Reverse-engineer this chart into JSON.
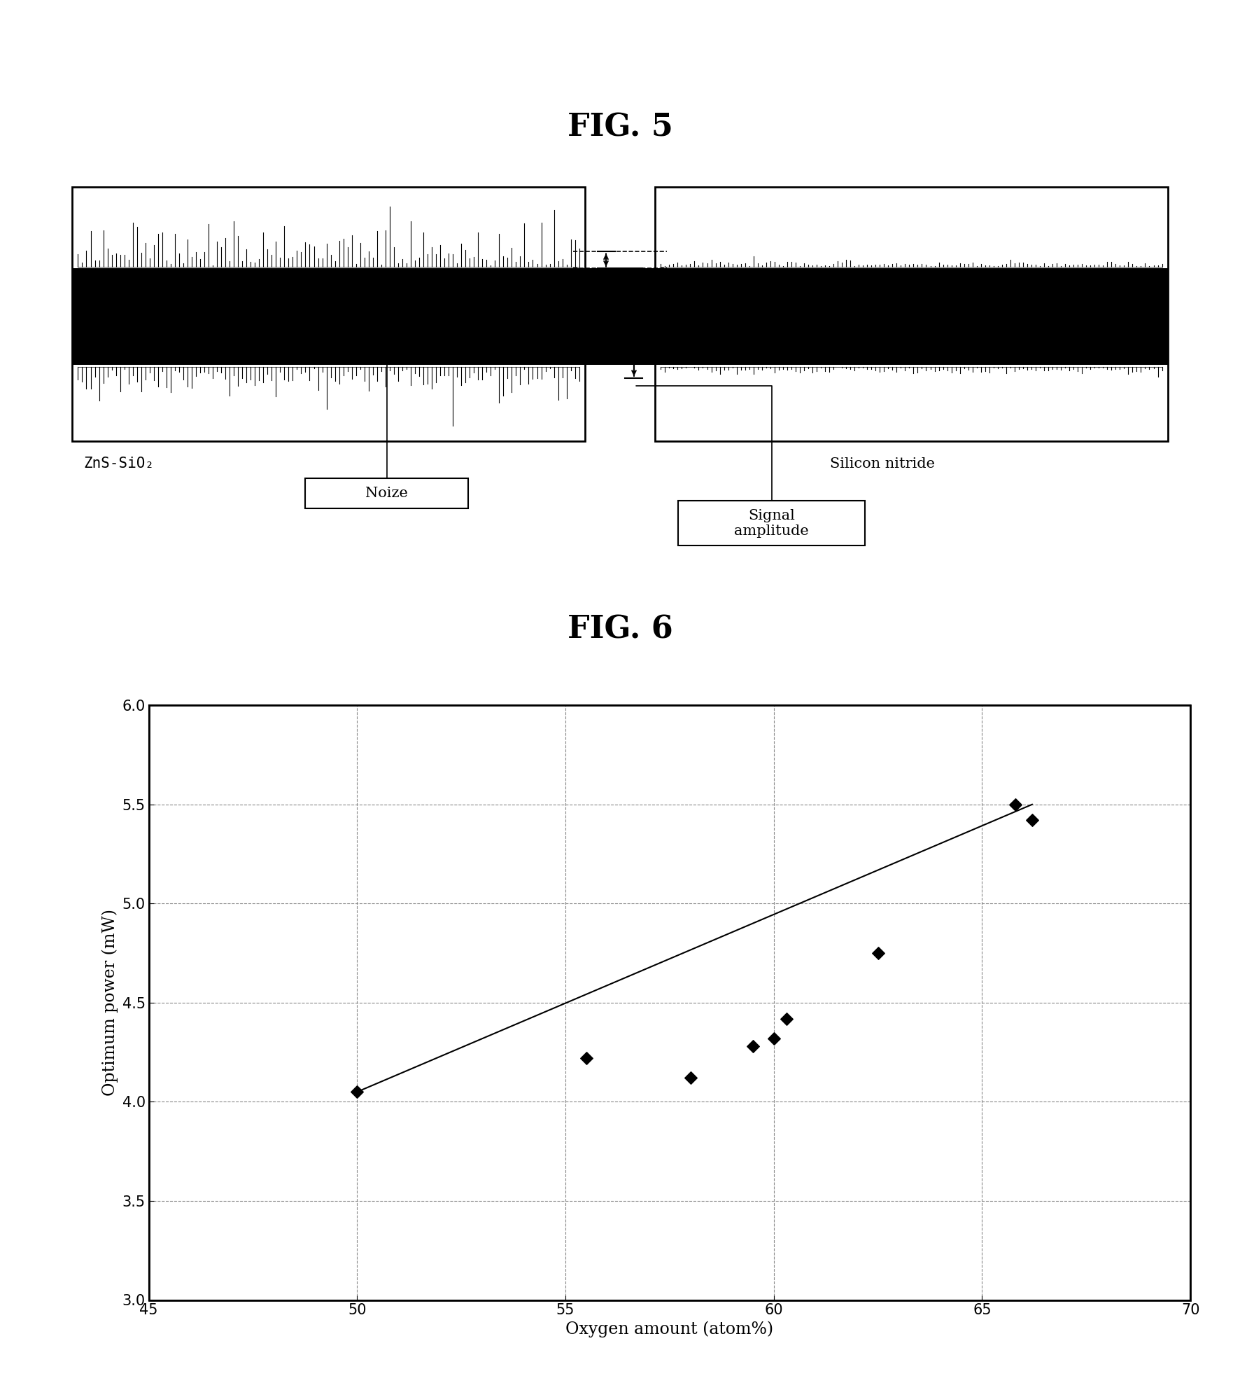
{
  "fig5_title": "FIG. 5",
  "fig6_title": "FIG. 6",
  "label_zns": "ZnS-SiO₂",
  "label_silicon": "Silicon nitride",
  "label_noize": "Noize",
  "label_signal": "Signal\namplitude",
  "xlabel": "Oxygen amount (atom%)",
  "ylabel": "Optimum power (mW)",
  "xlim": [
    45,
    70
  ],
  "ylim": [
    3.0,
    6.0
  ],
  "xticks": [
    45,
    50,
    55,
    60,
    65,
    70
  ],
  "yticks": [
    3.0,
    3.5,
    4.0,
    4.5,
    5.0,
    5.5,
    6.0
  ],
  "data_x": [
    50,
    55.5,
    58,
    59.5,
    60.0,
    60.3,
    62.5,
    65.8,
    66.2
  ],
  "data_y": [
    4.05,
    4.22,
    4.12,
    4.28,
    4.32,
    4.42,
    4.75,
    5.5,
    5.42
  ],
  "line_x": [
    50,
    66.2
  ],
  "line_y": [
    4.05,
    5.5
  ],
  "bg_color": "#ffffff"
}
